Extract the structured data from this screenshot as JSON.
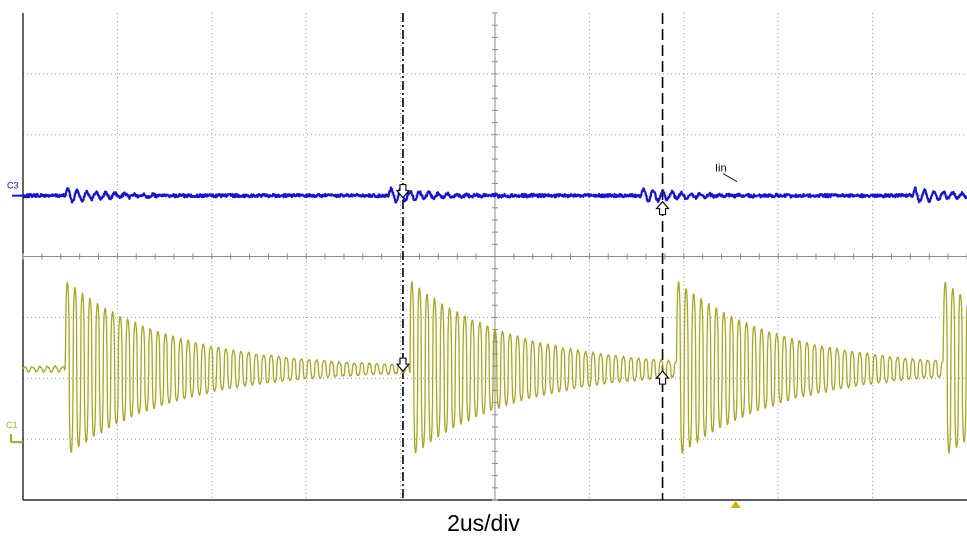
{
  "chart_data": {
    "type": "line",
    "title": "",
    "xlabel": "2us/div",
    "ylabel": "",
    "grid": true,
    "x_divisions": 10,
    "y_divisions": 8,
    "x_unit": "us",
    "us_per_div": 2,
    "xlim": [
      0,
      20
    ],
    "channels": [
      {
        "label": "C3",
        "color": "#1414d2",
        "trace_annotation": "Iin",
        "baseline_division": 5.0,
        "ringing_amplitude_div": 0.12,
        "burst_start_us": [
          0.9,
          7.75,
          13.1,
          18.85
        ]
      },
      {
        "label": "C1",
        "color": "#a8a81e",
        "baseline_division": 2.15,
        "burst_start_us": [
          0.9,
          8.2,
          13.85,
          19.5
        ],
        "peak_amplitude_div": 1.45,
        "oscillation_period_us": 0.16,
        "decay_time_constant_us": 2.3
      }
    ],
    "cursors_us": [
      {
        "style": "dash-dot",
        "time_us": 8.05
      },
      {
        "style": "dashed",
        "time_us": 13.55
      }
    ],
    "trigger_marker_us": 15.1,
    "trigger_marker_color": "#c8b400"
  }
}
